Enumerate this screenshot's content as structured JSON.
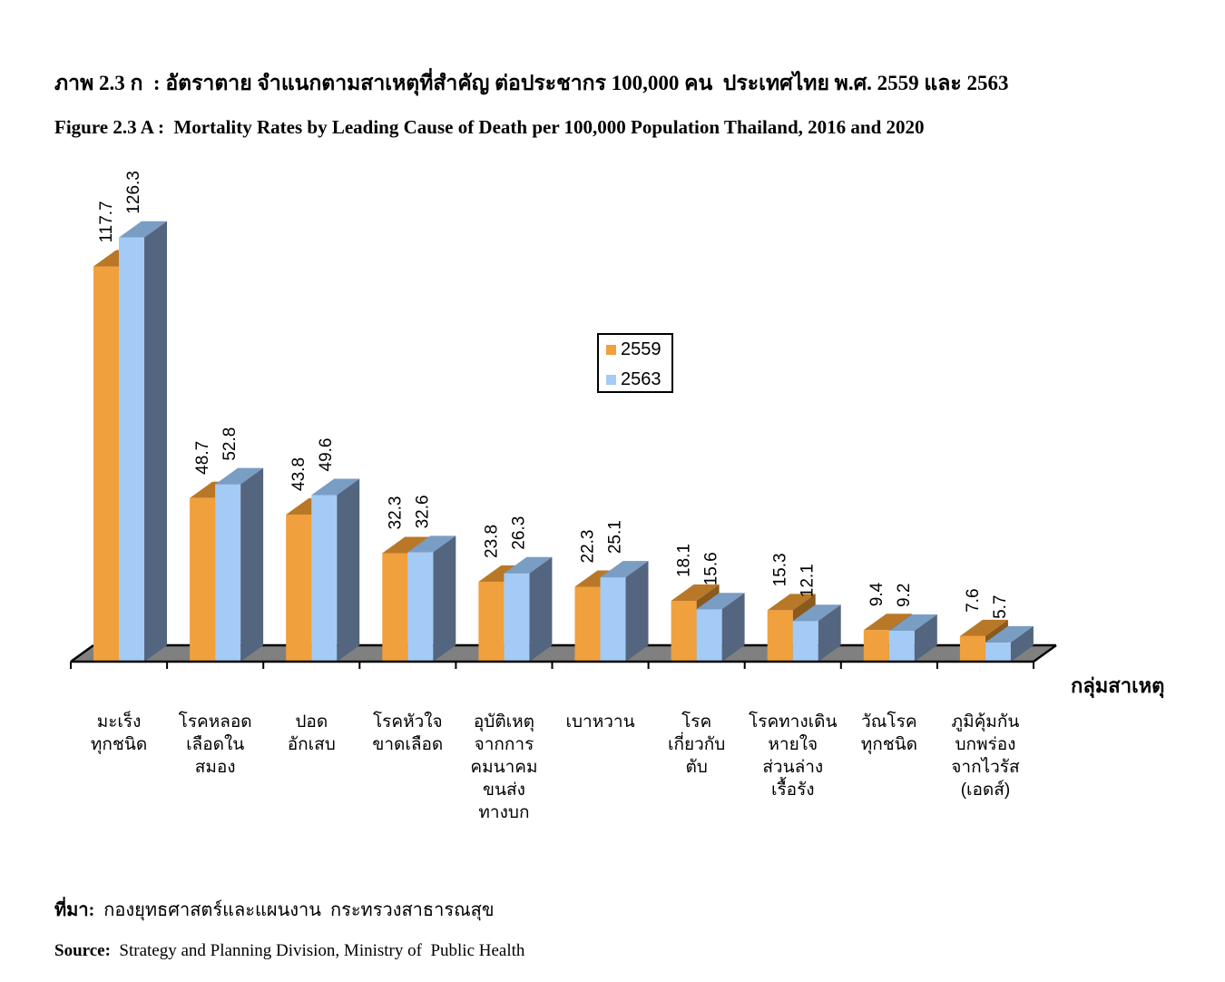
{
  "header": {
    "title_thai_prefix": "ภาพ 2.3 ก",
    "title_thai": ": อัตราตาย จำแนกตามสาเหตุที่สำคัญ ต่อประชากร 100,000 คน  ประเทศไทย พ.ศ. 2559 และ 2563",
    "title_english_prefix": "Figure 2.3 A :",
    "title_english": "Mortality Rates by Leading Cause of Death per 100,000 Population Thailand, 2016 and 2020"
  },
  "source": {
    "thai_label": "ที่มา:",
    "thai_text": "กองยุทธศาสตร์และแผนงาน  กระทรวงสาธารณสุข",
    "english_label": "Source:",
    "english_text": "Strategy and Planning Division, Ministry of  Public Health"
  },
  "chart_data": {
    "type": "bar",
    "style": "3d-clustered-column",
    "title": "Mortality Rates by Leading Cause of Death per 100,000 Population Thailand, 2016 and 2020",
    "xlabel": "กลุ่มสาเหตุ",
    "ylabel": "",
    "ylim": [
      0,
      130
    ],
    "grid": false,
    "legend_position": "center-top",
    "categories": [
      "มะเร็ง\nทุกชนิด",
      "โรคหลอด\nเลือดใน\nสมอง",
      "ปอด\nอักเสบ",
      "โรคหัวใจ\nขาดเลือด",
      "อุบัติเหตุ\nจากการ\nคมนาคม\nขนส่ง\nทางบก",
      "เบาหวาน",
      "โรค\nเกี่ยวกับ\nตับ",
      "โรคทางเดิน\nหายใจ\nส่วนล่าง\nเรื้อรัง",
      "วัณโรค\nทุกชนิด",
      "ภูมิคุ้มกัน\nบกพร่อง\nจากไวรัส\n(เอดส์)"
    ],
    "series": [
      {
        "name": "2559",
        "color": "#F0A03C",
        "top_color": "#B87828",
        "values": [
          117.7,
          48.7,
          43.8,
          32.3,
          23.8,
          22.3,
          18.1,
          15.3,
          9.4,
          7.6
        ],
        "labels": [
          "117.7",
          "48.7",
          "43.8",
          "32.3",
          "23.8",
          "22.3",
          "18.1",
          "15.3",
          "9.4",
          "7.6"
        ]
      },
      {
        "name": "2563",
        "color": "#A3CBF5",
        "top_color": "#7A9DC4",
        "side_color": "#53657F",
        "values": [
          126.3,
          52.8,
          49.6,
          32.6,
          26.3,
          25.1,
          15.6,
          12.1,
          9.2,
          5.7
        ],
        "labels": [
          "126.3",
          "52.8",
          "49.6",
          "32.6",
          "26.3",
          "25.1",
          "15.6",
          "12.1",
          "9.2",
          "5.7"
        ]
      }
    ],
    "floor_color": "#808080"
  }
}
